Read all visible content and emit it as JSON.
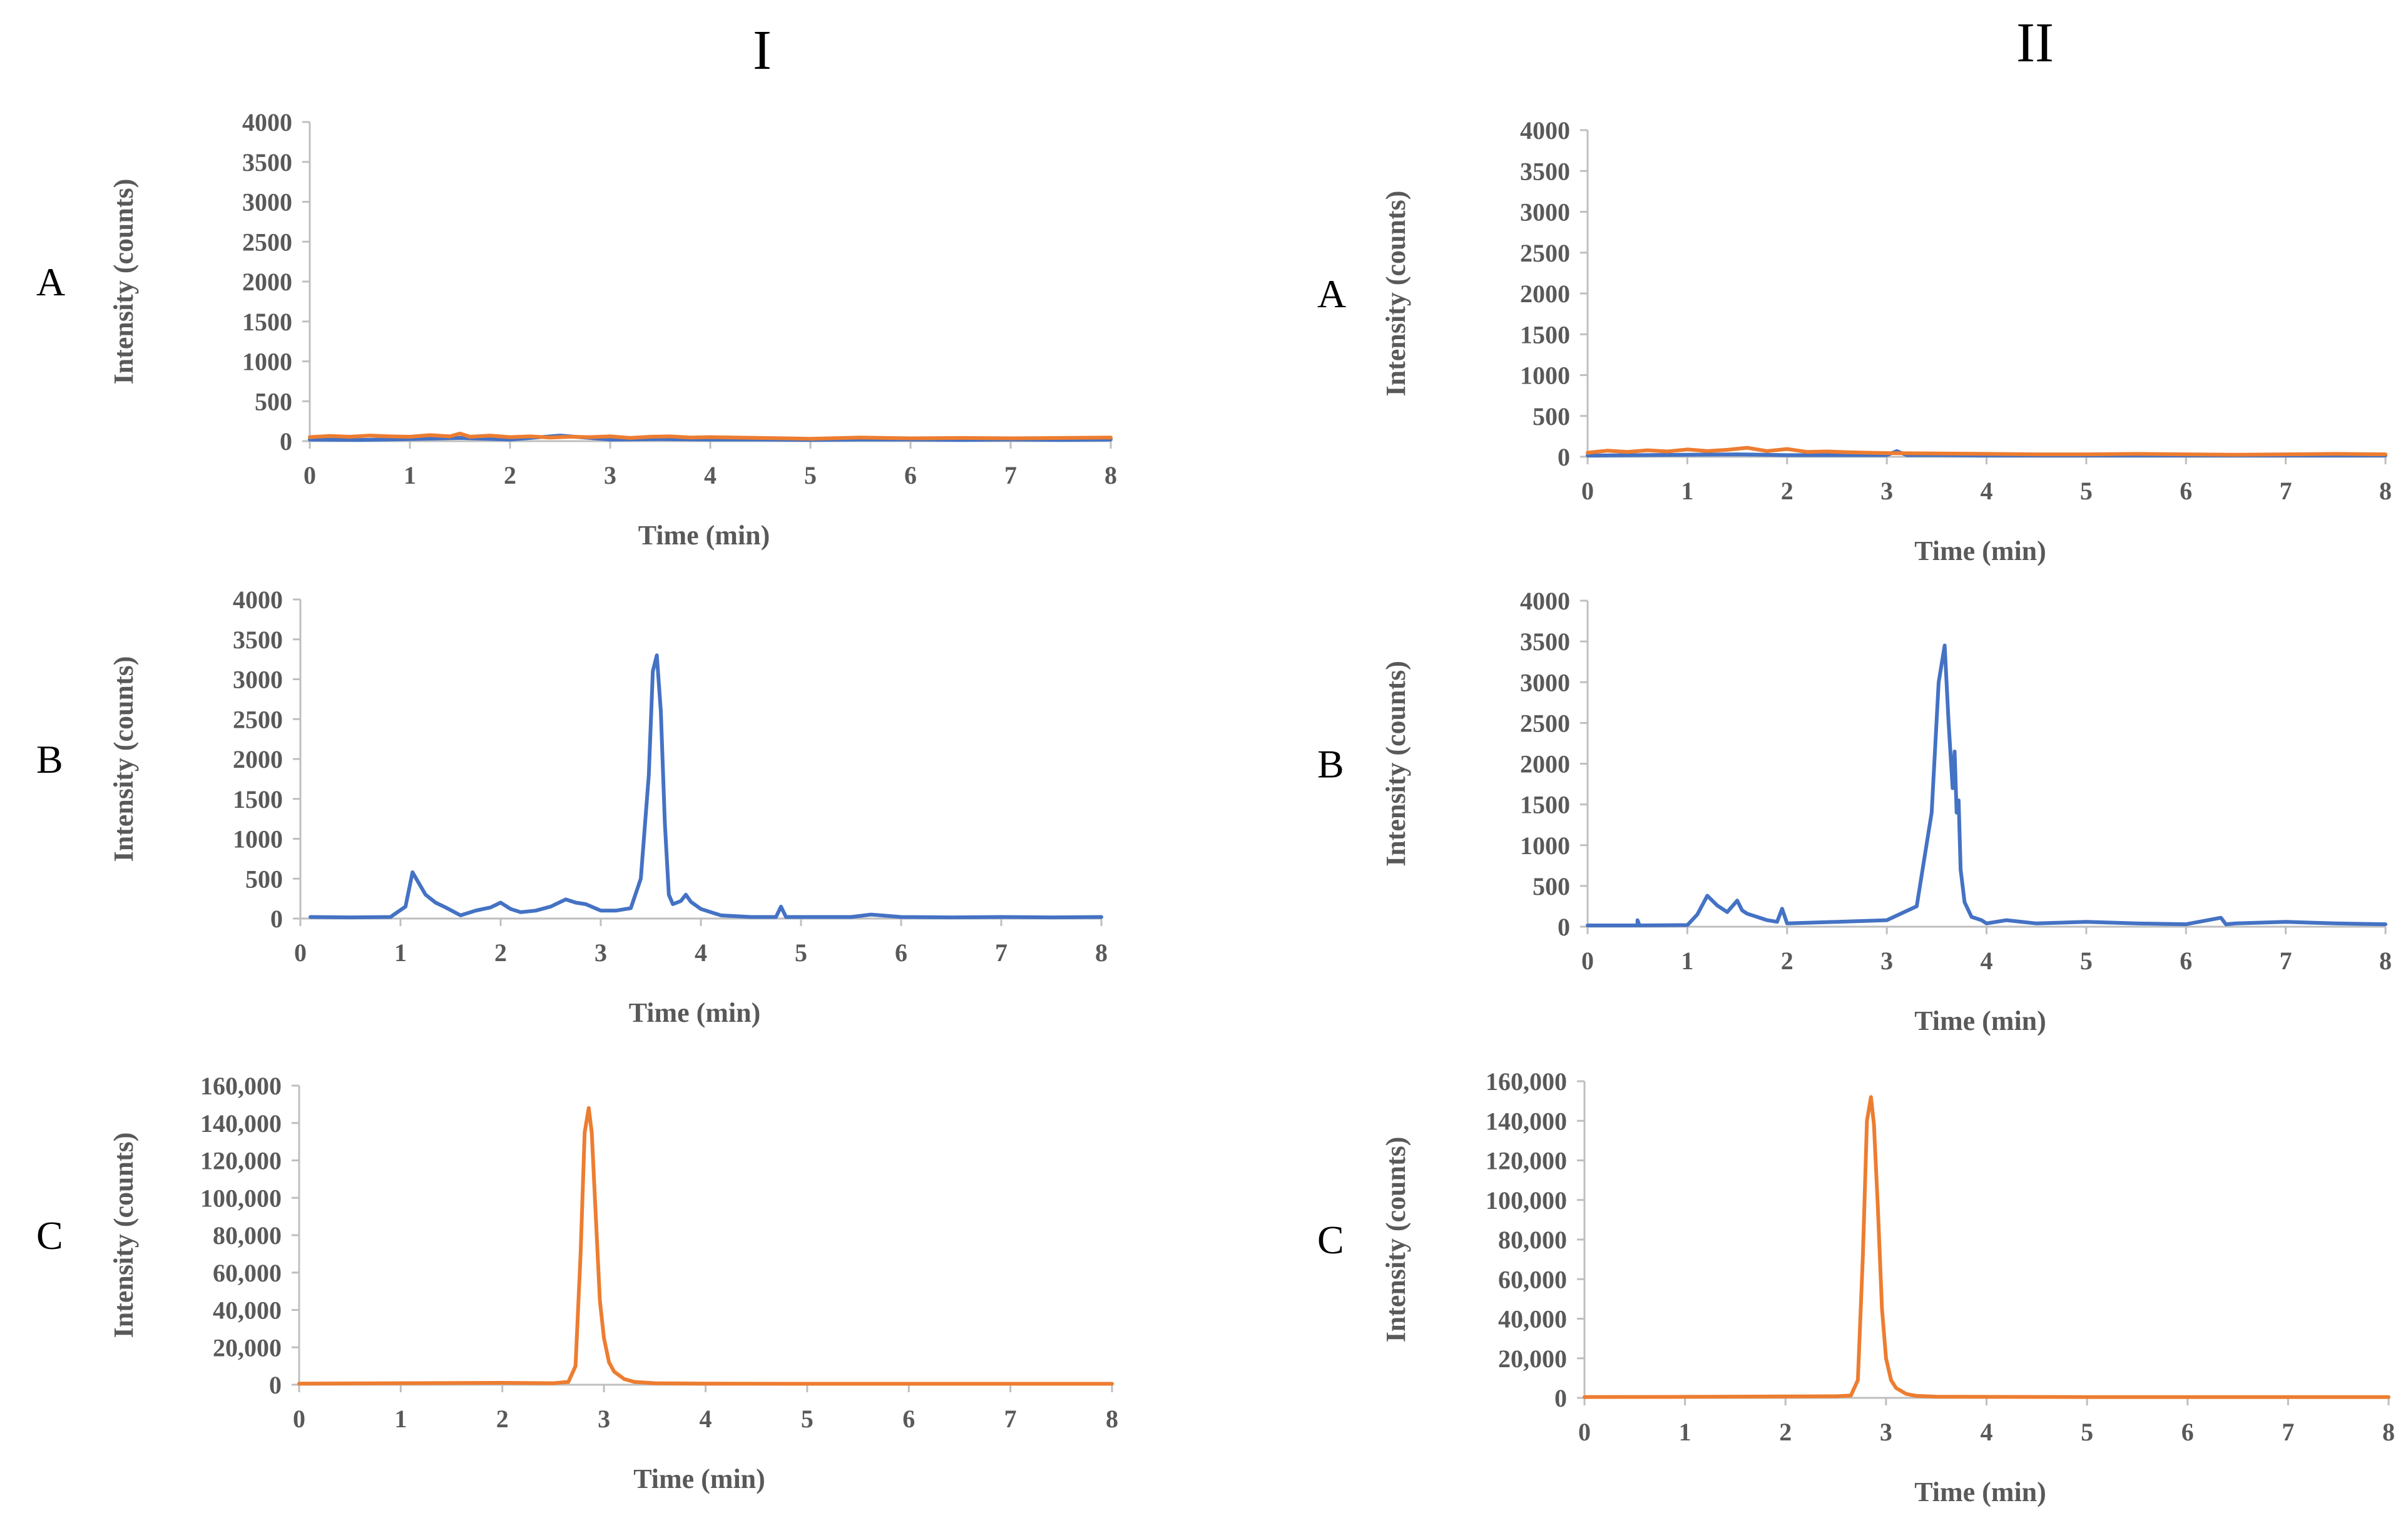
{
  "figure": {
    "column_titles": [
      "I",
      "II"
    ]
  },
  "colors": {
    "series_blue": "#4472C4",
    "series_orange": "#ED7D31",
    "axis": "#BFBFBF",
    "tick_text": "#595959"
  },
  "chart_data": [
    {
      "id": "I-A",
      "column": "I",
      "row_label": "A",
      "type": "line",
      "xlabel": "Time (min)",
      "ylabel": "Intensity (counts)",
      "xlim": [
        0,
        8
      ],
      "ylim": [
        0,
        4000
      ],
      "xticks": [
        "0",
        "1",
        "2",
        "3",
        "4",
        "5",
        "6",
        "7",
        "8"
      ],
      "yticks": [
        "0",
        "500",
        "1000",
        "1500",
        "2000",
        "2500",
        "3000",
        "3500",
        "4000"
      ],
      "series": [
        {
          "name": "blue",
          "color": "#4472C4",
          "x": [
            0,
            0.5,
            1,
            1.5,
            2,
            2.5,
            3,
            3.5,
            4,
            4.5,
            5,
            5.5,
            6,
            6.5,
            7,
            7.5,
            8
          ],
          "y": [
            20,
            15,
            25,
            40,
            20,
            70,
            20,
            25,
            20,
            20,
            15,
            20,
            20,
            15,
            20,
            15,
            20
          ]
        },
        {
          "name": "orange",
          "color": "#ED7D31",
          "x": [
            0,
            0.2,
            0.4,
            0.6,
            0.8,
            1,
            1.2,
            1.4,
            1.5,
            1.6,
            1.8,
            2,
            2.2,
            2.4,
            2.6,
            2.8,
            3,
            3.2,
            3.4,
            3.6,
            3.8,
            4,
            4.5,
            5,
            5.5,
            6,
            6.5,
            7,
            7.5,
            8
          ],
          "y": [
            50,
            65,
            55,
            70,
            60,
            55,
            75,
            60,
            95,
            55,
            70,
            50,
            60,
            45,
            55,
            50,
            60,
            40,
            55,
            60,
            45,
            50,
            40,
            30,
            45,
            35,
            40,
            35,
            40,
            45
          ]
        }
      ]
    },
    {
      "id": "I-B",
      "column": "I",
      "row_label": "B",
      "type": "line",
      "xlabel": "Time (min)",
      "ylabel": "Intensity (counts)",
      "xlim": [
        0,
        8
      ],
      "ylim": [
        0,
        4000
      ],
      "xticks": [
        "0",
        "1",
        "2",
        "3",
        "4",
        "5",
        "6",
        "7",
        "8"
      ],
      "yticks": [
        "0",
        "500",
        "1000",
        "1500",
        "2000",
        "2500",
        "3000",
        "3500",
        "4000"
      ],
      "series": [
        {
          "name": "blue",
          "color": "#4472C4",
          "x": [
            0.1,
            0.5,
            0.9,
            1.05,
            1.12,
            1.18,
            1.25,
            1.35,
            1.45,
            1.6,
            1.75,
            1.9,
            2.0,
            2.1,
            2.2,
            2.35,
            2.5,
            2.65,
            2.75,
            2.85,
            3.0,
            3.15,
            3.3,
            3.4,
            3.48,
            3.52,
            3.56,
            3.6,
            3.64,
            3.68,
            3.72,
            3.8,
            3.85,
            3.9,
            4.0,
            4.2,
            4.5,
            4.75,
            4.8,
            4.85,
            5.0,
            5.5,
            5.7,
            6.0,
            6.5,
            7.0,
            7.5,
            8.0
          ],
          "y": [
            20,
            15,
            20,
            150,
            580,
            450,
            300,
            200,
            140,
            40,
            100,
            140,
            200,
            120,
            80,
            100,
            150,
            240,
            200,
            180,
            100,
            100,
            130,
            500,
            1800,
            3100,
            3300,
            2600,
            1200,
            300,
            180,
            220,
            300,
            210,
            120,
            40,
            20,
            20,
            150,
            20,
            20,
            20,
            50,
            20,
            15,
            20,
            15,
            20
          ]
        }
      ]
    },
    {
      "id": "I-C",
      "column": "I",
      "row_label": "C",
      "type": "line",
      "xlabel": "Time (min)",
      "ylabel": "Intensity (counts)",
      "xlim": [
        0,
        8
      ],
      "ylim": [
        0,
        160000
      ],
      "xticks": [
        "0",
        "1",
        "2",
        "3",
        "4",
        "5",
        "6",
        "7",
        "8"
      ],
      "yticks": [
        "0",
        "20,000",
        "40,000",
        "60,000",
        "80,000",
        "100,000",
        "120,000",
        "140,000",
        "160,000"
      ],
      "series": [
        {
          "name": "orange",
          "color": "#ED7D31",
          "x": [
            0,
            1,
            2,
            2.5,
            2.65,
            2.72,
            2.77,
            2.81,
            2.85,
            2.88,
            2.92,
            2.96,
            3.0,
            3.05,
            3.1,
            3.2,
            3.3,
            3.5,
            4,
            5,
            6,
            7,
            8
          ],
          "y": [
            600,
            800,
            1000,
            800,
            1500,
            10000,
            70000,
            135000,
            148000,
            135000,
            90000,
            45000,
            25000,
            12000,
            7000,
            3000,
            1500,
            800,
            600,
            500,
            500,
            500,
            500
          ]
        }
      ]
    },
    {
      "id": "II-A",
      "column": "II",
      "row_label": "A",
      "type": "line",
      "xlabel": "Time (min)",
      "ylabel": "Intensity (counts)",
      "xlim": [
        0,
        8
      ],
      "ylim": [
        0,
        4000
      ],
      "xticks": [
        "0",
        "1",
        "2",
        "3",
        "4",
        "5",
        "6",
        "7",
        "8"
      ],
      "yticks": [
        "0",
        "500",
        "1000",
        "1500",
        "2000",
        "2500",
        "3000",
        "3500",
        "4000"
      ],
      "series": [
        {
          "name": "blue",
          "color": "#4472C4",
          "x": [
            0,
            0.5,
            1,
            1.5,
            2,
            2.5,
            3,
            3.1,
            3.2,
            3.5,
            4,
            5,
            6,
            7,
            8
          ],
          "y": [
            15,
            20,
            25,
            30,
            20,
            20,
            20,
            70,
            20,
            20,
            15,
            15,
            15,
            15,
            15
          ]
        },
        {
          "name": "orange",
          "color": "#ED7D31",
          "x": [
            0,
            0.2,
            0.4,
            0.6,
            0.8,
            1,
            1.2,
            1.4,
            1.6,
            1.8,
            2,
            2.2,
            2.4,
            2.6,
            2.8,
            3,
            3.5,
            4,
            4.5,
            5,
            5.5,
            6,
            6.5,
            7,
            7.5,
            8
          ],
          "y": [
            50,
            75,
            60,
            80,
            65,
            90,
            70,
            85,
            110,
            70,
            95,
            60,
            65,
            55,
            50,
            45,
            40,
            35,
            30,
            30,
            35,
            30,
            25,
            30,
            35,
            30
          ]
        }
      ]
    },
    {
      "id": "II-B",
      "column": "II",
      "row_label": "B",
      "type": "line",
      "xlabel": "Time (min)",
      "ylabel": "Intensity (counts)",
      "xlim": [
        0,
        8
      ],
      "ylim": [
        0,
        4000
      ],
      "xticks": [
        "0",
        "1",
        "2",
        "3",
        "4",
        "5",
        "6",
        "7",
        "8"
      ],
      "yticks": [
        "0",
        "500",
        "1000",
        "1500",
        "2000",
        "2500",
        "3000",
        "3500",
        "4000"
      ],
      "series": [
        {
          "name": "blue",
          "color": "#4472C4",
          "x": [
            0,
            0.5,
            0.5,
            0.52,
            1.0,
            1.1,
            1.2,
            1.3,
            1.4,
            1.5,
            1.55,
            1.6,
            1.7,
            1.8,
            1.9,
            1.95,
            2.0,
            2.5,
            3.0,
            3.3,
            3.45,
            3.52,
            3.58,
            3.62,
            3.66,
            3.68,
            3.7,
            3.72,
            3.74,
            3.78,
            3.85,
            3.95,
            4.0,
            4.2,
            4.5,
            5.0,
            5.5,
            6.0,
            6.35,
            6.4,
            6.5,
            7.0,
            7.5,
            8.0
          ],
          "y": [
            15,
            15,
            80,
            15,
            20,
            150,
            380,
            260,
            180,
            320,
            200,
            160,
            120,
            80,
            60,
            220,
            40,
            60,
            80,
            250,
            1400,
            3000,
            3450,
            2500,
            1700,
            2150,
            1400,
            1550,
            700,
            300,
            120,
            80,
            40,
            80,
            40,
            60,
            40,
            30,
            110,
            30,
            40,
            60,
            40,
            30
          ]
        }
      ]
    },
    {
      "id": "II-C",
      "column": "II",
      "row_label": "C",
      "type": "line",
      "xlabel": "Time (min)",
      "ylabel": "Intensity (counts)",
      "xlim": [
        0,
        8
      ],
      "ylim": [
        0,
        160000
      ],
      "xticks": [
        "0",
        "1",
        "2",
        "3",
        "4",
        "5",
        "6",
        "7",
        "8"
      ],
      "yticks": [
        "0",
        "20,000",
        "40,000",
        "60,000",
        "80,000",
        "100,000",
        "120,000",
        "140,000",
        "160,000"
      ],
      "series": [
        {
          "name": "orange",
          "color": "#ED7D31",
          "x": [
            0,
            1,
            2,
            2.5,
            2.65,
            2.72,
            2.77,
            2.81,
            2.85,
            2.88,
            2.92,
            2.96,
            3.0,
            3.05,
            3.1,
            3.2,
            3.3,
            3.5,
            4,
            5,
            6,
            7,
            8
          ],
          "y": [
            400,
            500,
            700,
            800,
            1200,
            9000,
            72000,
            140000,
            152000,
            138000,
            95000,
            45000,
            20000,
            9000,
            5000,
            2000,
            1000,
            600,
            500,
            400,
            400,
            400,
            400
          ]
        }
      ]
    }
  ]
}
